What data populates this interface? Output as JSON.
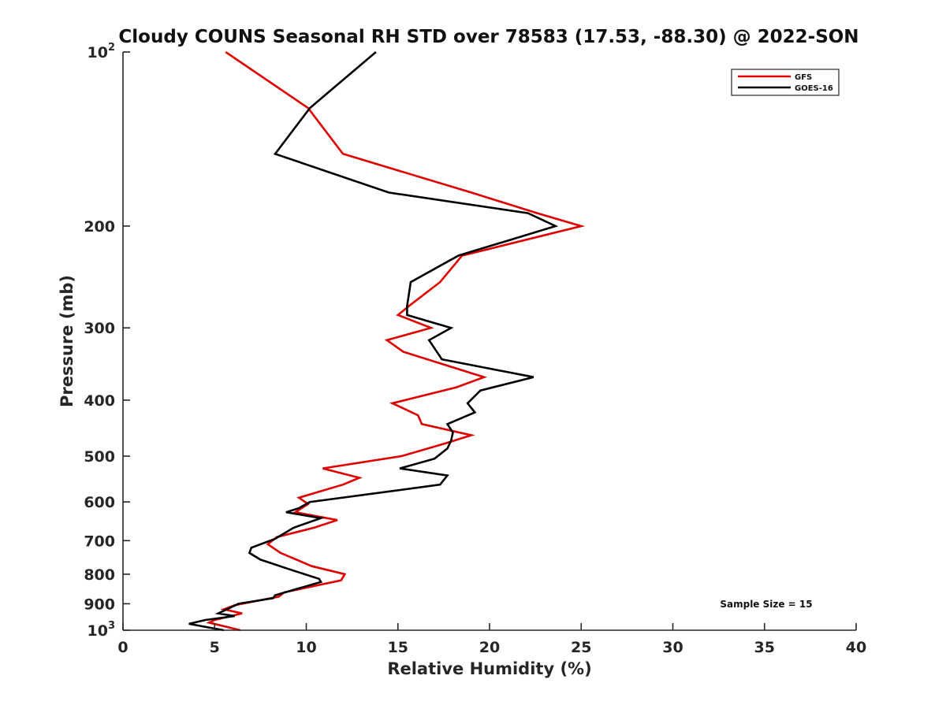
{
  "chart_data": {
    "type": "line",
    "title": "Cloudy COUNS Seasonal RH STD over 78583 (17.53, -88.30) @ 2022-SON",
    "xlabel": "Relative Humidity (%)",
    "ylabel": "Pressure (mb)",
    "xlim": [
      0,
      40
    ],
    "ylim": [
      100,
      1000
    ],
    "yscale": "log",
    "y_reversed": true,
    "xticks": [
      "0",
      "5",
      "10",
      "15",
      "20",
      "25",
      "30",
      "35",
      "40"
    ],
    "yticks": [
      {
        "value": 100,
        "label": "10",
        "sup": "2"
      },
      {
        "value": 200,
        "label": "200"
      },
      {
        "value": 300,
        "label": "300"
      },
      {
        "value": 400,
        "label": "400"
      },
      {
        "value": 500,
        "label": "500"
      },
      {
        "value": 600,
        "label": "600"
      },
      {
        "value": 700,
        "label": "700"
      },
      {
        "value": 800,
        "label": "800"
      },
      {
        "value": 900,
        "label": "900"
      },
      {
        "value": 1000,
        "label": "10",
        "sup": "3"
      }
    ],
    "legend": {
      "position": "top-right"
    },
    "annotation": "Sample Size = 15",
    "series": [
      {
        "name": "GFS",
        "color": "#e00000",
        "points": [
          [
            5.6,
            100
          ],
          [
            10.1,
            125
          ],
          [
            12.0,
            150
          ],
          [
            19.0,
            175
          ],
          [
            22.6,
            190
          ],
          [
            25.0,
            200
          ],
          [
            18.5,
            225
          ],
          [
            17.3,
            250
          ],
          [
            15.6,
            275
          ],
          [
            15.0,
            285
          ],
          [
            16.8,
            300
          ],
          [
            14.4,
            315
          ],
          [
            15.3,
            330
          ],
          [
            19.7,
            365
          ],
          [
            18.2,
            380
          ],
          [
            14.7,
            405
          ],
          [
            16.1,
            425
          ],
          [
            16.3,
            440
          ],
          [
            19.0,
            460
          ],
          [
            17.6,
            475
          ],
          [
            15.2,
            500
          ],
          [
            10.9,
            525
          ],
          [
            12.9,
            545
          ],
          [
            12.0,
            560
          ],
          [
            9.6,
            590
          ],
          [
            10.1,
            605
          ],
          [
            9.4,
            625
          ],
          [
            11.7,
            645
          ],
          [
            10.4,
            665
          ],
          [
            8.4,
            690
          ],
          [
            7.9,
            710
          ],
          [
            8.6,
            735
          ],
          [
            10.3,
            775
          ],
          [
            12.1,
            800
          ],
          [
            11.9,
            820
          ],
          [
            8.8,
            860
          ],
          [
            8.5,
            875
          ],
          [
            6.1,
            905
          ],
          [
            5.5,
            920
          ],
          [
            6.5,
            935
          ],
          [
            5.0,
            960
          ],
          [
            4.7,
            970
          ],
          [
            6.4,
            1000
          ]
        ]
      },
      {
        "name": "GOES-16",
        "color": "#000000",
        "points": [
          [
            13.8,
            100
          ],
          [
            10.2,
            125
          ],
          [
            8.3,
            150
          ],
          [
            14.5,
            175
          ],
          [
            22.1,
            190
          ],
          [
            23.6,
            200
          ],
          [
            18.3,
            225
          ],
          [
            15.7,
            250
          ],
          [
            15.5,
            275
          ],
          [
            15.5,
            285
          ],
          [
            17.9,
            300
          ],
          [
            16.7,
            315
          ],
          [
            17.4,
            340
          ],
          [
            22.4,
            365
          ],
          [
            19.5,
            385
          ],
          [
            18.8,
            405
          ],
          [
            19.2,
            420
          ],
          [
            17.7,
            440
          ],
          [
            18.0,
            455
          ],
          [
            17.9,
            470
          ],
          [
            17.7,
            485
          ],
          [
            17.0,
            505
          ],
          [
            15.1,
            525
          ],
          [
            17.7,
            540
          ],
          [
            17.3,
            560
          ],
          [
            10.2,
            600
          ],
          [
            9.6,
            615
          ],
          [
            8.9,
            625
          ],
          [
            10.8,
            640
          ],
          [
            9.3,
            665
          ],
          [
            8.3,
            695
          ],
          [
            7.0,
            720
          ],
          [
            6.9,
            735
          ],
          [
            7.5,
            755
          ],
          [
            9.1,
            785
          ],
          [
            10.7,
            815
          ],
          [
            10.8,
            825
          ],
          [
            8.3,
            870
          ],
          [
            8.2,
            880
          ],
          [
            6.3,
            900
          ],
          [
            5.2,
            935
          ],
          [
            6.1,
            945
          ],
          [
            4.5,
            960
          ],
          [
            3.6,
            975
          ],
          [
            5.5,
            1000
          ]
        ]
      }
    ]
  }
}
